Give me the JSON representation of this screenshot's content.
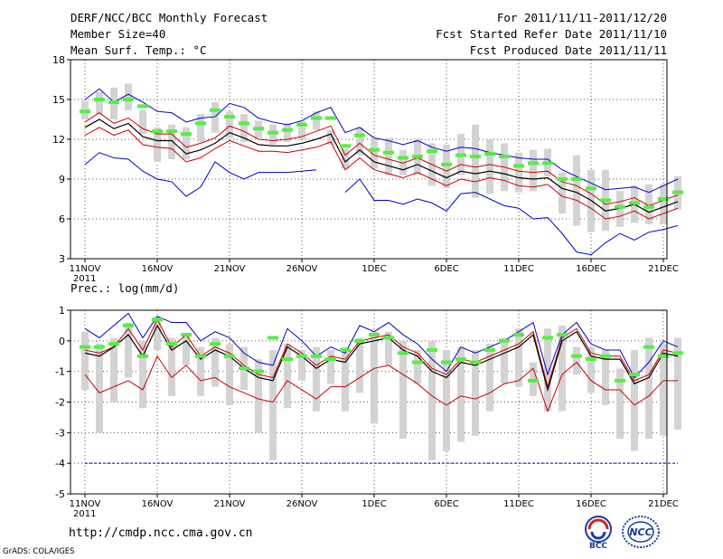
{
  "header": {
    "title": "DERF/NCC/BCC Monthly Forecast",
    "member": "Member Size=40",
    "variable": "Mean Surf. Temp.: °C",
    "period": "For 2011/11/11-2011/12/20",
    "refer_date": "Fcst Started Refer Date 2011/11/10",
    "produced_date": "Fcst Produced Date 2011/11/11"
  },
  "footer": {
    "url": "http://cmdp.ncc.cma.gov.cn",
    "credit": "GrADS: COLA/IGES",
    "logo1": "BCC",
    "logo2": "NCC"
  },
  "colors": {
    "box": "#d3d3d3",
    "median": "#55ee44",
    "mean": "#000000",
    "bound": "#0000cc",
    "band": "#cc0000",
    "ref": "#0000cc"
  },
  "chart_data": [
    {
      "type": "line",
      "title": "Mean Surf. Temp.: °C",
      "x_tick_labels": [
        "11NOV",
        "16NOV",
        "21NOV",
        "26NOV",
        "1DEC",
        "6DEC",
        "11DEC",
        "16DEC",
        "21DEC"
      ],
      "x_extra_label": "2011",
      "x_tick_days": [
        1,
        6,
        11,
        16,
        21,
        26,
        31,
        36,
        41
      ],
      "ylim": [
        3,
        18
      ],
      "yticks": [
        3,
        6,
        9,
        12,
        15,
        18
      ],
      "series": [
        {
          "name": "max",
          "values": [
            15.0,
            15.8,
            14.8,
            15.4,
            14.8,
            14.1,
            14.0,
            13.3,
            13.6,
            13.7,
            14.7,
            14.4,
            13.6,
            13.3,
            13.1,
            13.4,
            14.0,
            14.4,
            12.5,
            12.9,
            12.1,
            11.9,
            11.6,
            11.9,
            11.4,
            11.1,
            11.4,
            11.3,
            11.0,
            10.8,
            10.6,
            10.5,
            10.5,
            9.7,
            9.2,
            8.7,
            8.2,
            8.3,
            8.4,
            8.0,
            8.5,
            9.0
          ]
        },
        {
          "name": "upper",
          "values": [
            13.3,
            14.0,
            13.2,
            13.6,
            12.8,
            12.4,
            12.4,
            11.4,
            11.7,
            12.1,
            13.0,
            12.6,
            12.0,
            11.9,
            12.0,
            12.2,
            12.6,
            13.0,
            10.8,
            11.7,
            10.8,
            10.5,
            10.2,
            10.6,
            10.1,
            9.6,
            10.1,
            9.9,
            10.1,
            9.9,
            9.6,
            9.5,
            9.6,
            8.8,
            8.5,
            7.9,
            7.1,
            7.3,
            7.6,
            7.0,
            7.4,
            7.8
          ]
        },
        {
          "name": "mean",
          "values": [
            12.9,
            13.5,
            12.8,
            13.2,
            12.2,
            11.9,
            11.9,
            10.9,
            11.2,
            11.7,
            12.5,
            12.1,
            11.6,
            11.5,
            11.5,
            11.7,
            12.0,
            12.4,
            10.3,
            11.2,
            10.3,
            10.0,
            9.7,
            10.1,
            9.6,
            9.1,
            9.6,
            9.4,
            9.6,
            9.4,
            9.1,
            9.0,
            9.1,
            8.3,
            8.0,
            7.4,
            6.6,
            6.8,
            7.1,
            6.5,
            6.9,
            7.3
          ]
        },
        {
          "name": "lower",
          "values": [
            12.3,
            12.9,
            12.3,
            12.7,
            11.6,
            11.4,
            11.3,
            10.3,
            10.6,
            11.3,
            11.9,
            11.5,
            11.1,
            11.1,
            11.0,
            11.2,
            11.4,
            11.8,
            9.7,
            10.6,
            9.7,
            9.4,
            9.1,
            9.5,
            9.0,
            8.5,
            9.0,
            8.8,
            9.1,
            8.9,
            8.5,
            8.4,
            8.6,
            7.7,
            7.4,
            6.8,
            6.0,
            6.2,
            6.6,
            6.0,
            6.4,
            6.8
          ]
        },
        {
          "name": "min",
          "values": [
            10.1,
            11.0,
            10.6,
            10.5,
            9.6,
            9.0,
            8.8,
            7.7,
            8.4,
            10.3,
            9.5,
            9.0,
            9.5,
            9.5,
            9.5,
            9.6,
            9.7,
            null,
            8.0,
            9.0,
            7.4,
            7.4,
            7.1,
            7.5,
            7.2,
            6.6,
            7.9,
            8.0,
            7.5,
            7.0,
            6.8,
            6.0,
            6.1,
            4.9,
            3.5,
            3.3,
            4.2,
            4.9,
            4.4,
            5.0,
            5.2,
            5.5
          ]
        },
        {
          "name": "median",
          "values": [
            14.1,
            15.0,
            14.8,
            15.0,
            14.5,
            12.6,
            12.6,
            12.4,
            13.2,
            14.2,
            13.7,
            13.2,
            12.8,
            12.5,
            12.7,
            13.1,
            13.6,
            13.6,
            11.5,
            12.3,
            11.2,
            11.0,
            10.6,
            10.7,
            11.1,
            10.1,
            10.8,
            10.7,
            10.9,
            10.7,
            10.0,
            10.2,
            10.2,
            9.0,
            9.0,
            8.3,
            7.4,
            6.9,
            7.2,
            6.9,
            7.5,
            8.0
          ]
        },
        {
          "name": "box_top",
          "values": [
            14.9,
            15.6,
            15.9,
            16.2,
            14.2,
            12.9,
            13.1,
            12.9,
            13.9,
            14.8,
            14.1,
            13.9,
            13.4,
            13.1,
            13.2,
            13.4,
            14.1,
            12.7,
            11.3,
            12.9,
            12.1,
            12.1,
            11.2,
            12.0,
            11.7,
            11.6,
            12.4,
            13.1,
            12.0,
            11.7,
            11.0,
            11.2,
            11.3,
            9.5,
            10.8,
            9.7,
            9.7,
            8.1,
            8.5,
            8.6,
            8.6,
            9.2
          ]
        },
        {
          "name": "box_bottom",
          "values": [
            13.5,
            13.9,
            13.5,
            14.2,
            12.4,
            10.3,
            10.5,
            10.5,
            11.8,
            12.5,
            12.1,
            11.8,
            12.1,
            11.6,
            11.8,
            12.0,
            12.7,
            11.6,
            9.8,
            10.8,
            9.8,
            9.3,
            9.3,
            9.3,
            8.5,
            8.3,
            9.3,
            7.6,
            7.9,
            8.1,
            8.0,
            8.1,
            9.2,
            6.4,
            5.5,
            5.0,
            5.1,
            5.4,
            5.7,
            5.6,
            5.6,
            6.7
          ]
        }
      ]
    },
    {
      "type": "line",
      "title": "Prec.: log(mm/d)",
      "x_tick_labels": [
        "11NOV",
        "16NOV",
        "21NOV",
        "26NOV",
        "1DEC",
        "6DEC",
        "11DEC",
        "16DEC",
        "21DEC"
      ],
      "x_extra_label": "2011",
      "x_tick_days": [
        1,
        6,
        11,
        16,
        21,
        26,
        31,
        36,
        41
      ],
      "ylim": [
        -5,
        1
      ],
      "yticks": [
        -5,
        -4,
        -3,
        -2,
        -1,
        0,
        1
      ],
      "series": [
        {
          "name": "max",
          "values": [
            0.4,
            0.1,
            0.5,
            0.9,
            0.1,
            0.8,
            0.6,
            0.6,
            0.0,
            0.3,
            0.1,
            -0.4,
            -0.7,
            -0.8,
            0.4,
            0.0,
            -0.5,
            -0.2,
            -0.4,
            0.5,
            0.3,
            0.6,
            0.2,
            -0.1,
            -0.6,
            -1.0,
            -0.2,
            -0.4,
            -0.2,
            0.0,
            0.3,
            0.6,
            -1.1,
            0.2,
            0.6,
            -0.1,
            -0.3,
            -0.3,
            -1.2,
            -0.7,
            0.0,
            -0.2
          ]
        },
        {
          "name": "upper",
          "values": [
            -0.3,
            -0.4,
            -0.2,
            0.4,
            -0.3,
            0.7,
            -0.2,
            0.2,
            -0.5,
            -0.2,
            -0.4,
            -0.8,
            -1.1,
            -1.2,
            -0.1,
            -0.4,
            -0.8,
            -0.5,
            -0.6,
            0.0,
            0.1,
            0.2,
            -0.2,
            -0.4,
            -0.9,
            -1.1,
            -0.6,
            -0.7,
            -0.5,
            -0.3,
            -0.1,
            0.3,
            -1.5,
            0.1,
            0.4,
            -0.4,
            -0.5,
            -0.5,
            -1.3,
            -1.1,
            -0.3,
            -0.4
          ]
        },
        {
          "name": "mean",
          "values": [
            -0.4,
            -0.5,
            -0.2,
            0.2,
            -0.5,
            0.5,
            -0.3,
            0.0,
            -0.6,
            -0.3,
            -0.5,
            -0.9,
            -1.2,
            -1.3,
            -0.2,
            -0.5,
            -0.9,
            -0.6,
            -0.7,
            -0.1,
            0.0,
            0.1,
            -0.3,
            -0.5,
            -1.0,
            -1.2,
            -0.7,
            -0.8,
            -0.6,
            -0.4,
            -0.2,
            0.2,
            -1.6,
            0.0,
            0.3,
            -0.5,
            -0.6,
            -0.6,
            -1.4,
            -1.2,
            -0.4,
            -0.5
          ]
        },
        {
          "name": "lower",
          "values": [
            -1.1,
            -1.7,
            -1.5,
            -1.3,
            -1.6,
            -0.5,
            -1.2,
            -0.8,
            -1.3,
            -1.2,
            -1.5,
            -1.7,
            -1.9,
            -2.0,
            -1.3,
            -1.6,
            -1.9,
            -1.5,
            -1.5,
            -1.2,
            -0.9,
            -0.8,
            -1.1,
            -1.4,
            -1.8,
            -2.1,
            -1.8,
            -1.9,
            -1.7,
            -1.4,
            -1.3,
            -0.9,
            -2.3,
            -1.1,
            -0.7,
            -1.3,
            -1.6,
            -1.6,
            -2.1,
            -1.8,
            -1.3,
            -1.3
          ]
        },
        {
          "name": "median",
          "values": [
            -0.2,
            -0.2,
            -0.1,
            0.5,
            -0.5,
            0.7,
            -0.1,
            0.2,
            -0.5,
            -0.1,
            -0.5,
            -0.9,
            -1.0,
            0.1,
            -0.6,
            -0.5,
            -0.5,
            -0.6,
            -0.3,
            0.0,
            0.2,
            0.1,
            -0.4,
            -0.7,
            -0.3,
            -0.7,
            -0.6,
            -0.7,
            -0.3,
            0.0,
            0.2,
            -1.3,
            0.1,
            0.2,
            -0.5,
            -0.6,
            -0.5,
            -1.3,
            -1.1,
            -0.2,
            -0.5,
            -0.4
          ]
        },
        {
          "name": "box_top",
          "values": [
            0.3,
            -0.1,
            0.1,
            0.6,
            0.0,
            0.8,
            0.1,
            0.2,
            -0.2,
            0.1,
            -0.1,
            -0.2,
            -0.6,
            -0.3,
            -0.1,
            -0.3,
            -0.2,
            -0.3,
            -0.2,
            0.1,
            0.3,
            0.3,
            0.0,
            -0.3,
            0.0,
            -0.3,
            -0.2,
            -0.3,
            -0.1,
            0.1,
            0.4,
            -0.7,
            0.4,
            0.5,
            -0.2,
            -0.2,
            -0.3,
            -0.9,
            -0.3,
            0.1,
            -0.1,
            0.1
          ]
        },
        {
          "name": "box_bottom",
          "values": [
            -1.6,
            -3.0,
            -2.0,
            -1.2,
            -2.2,
            -0.3,
            -1.8,
            -0.8,
            -1.8,
            -1.5,
            -2.1,
            -1.6,
            -3.0,
            -3.9,
            -2.2,
            -1.3,
            -2.3,
            -1.4,
            -2.3,
            -1.7,
            -2.7,
            -0.8,
            -3.2,
            -1.4,
            -3.9,
            -3.6,
            -3.3,
            -3.1,
            -2.3,
            -1.4,
            -1.5,
            -1.8,
            -2.3,
            -2.3,
            -1.1,
            -1.7,
            -2.1,
            -3.2,
            -3.6,
            -3.2,
            -3.1,
            -2.9
          ]
        },
        {
          "name": "reference",
          "values": [
            -4,
            -4
          ]
        }
      ]
    }
  ]
}
